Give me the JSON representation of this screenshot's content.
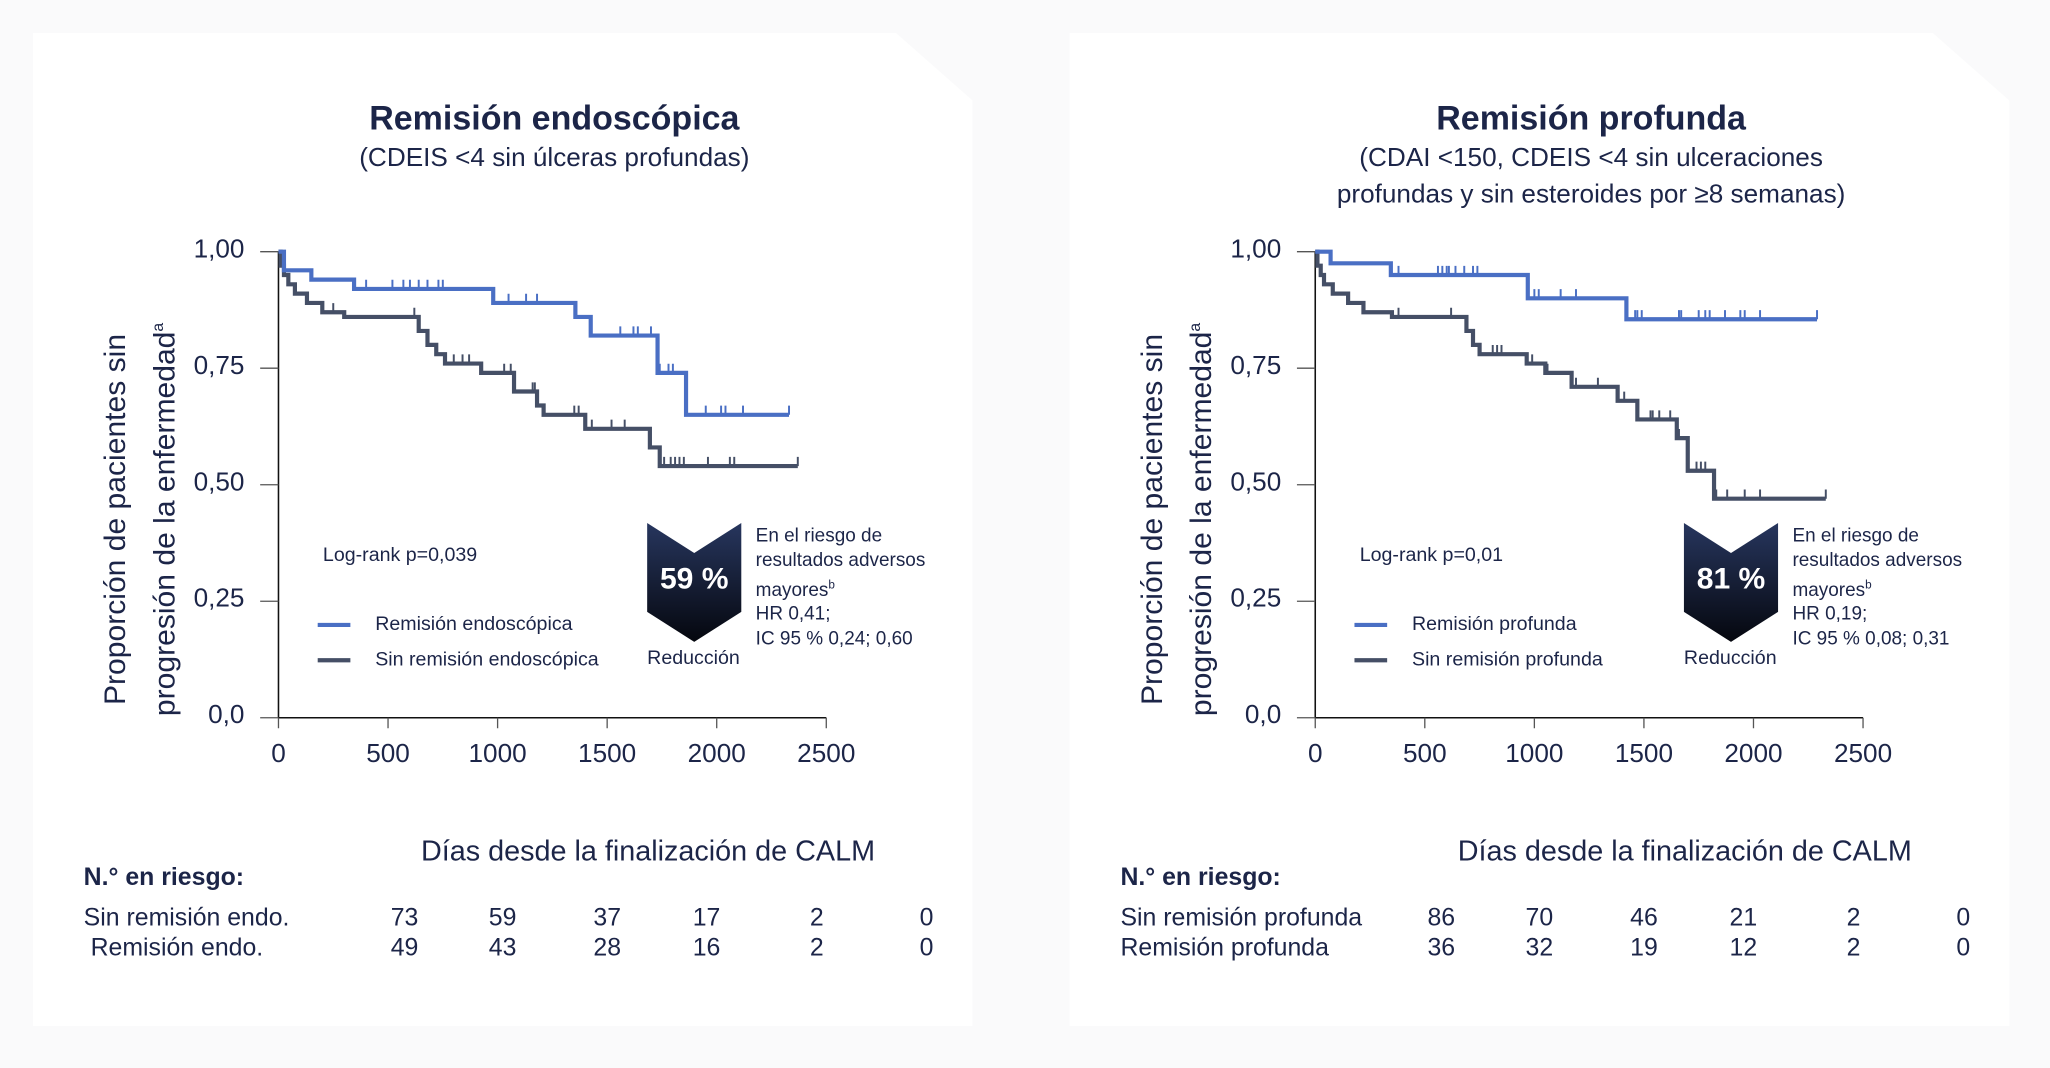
{
  "colors": {
    "series_1": "#4a6fc4",
    "series_2": "#454f66",
    "text": "#1c2548"
  },
  "shared": {
    "y_axis_label_line1": "Proporción de pacientes sin",
    "y_axis_label_line2": "progresión de la enfermedad",
    "y_axis_label_sup": "a",
    "x_axis_label": "Días desde la finalización de CALM",
    "risk_header": "N.° en riesgo:",
    "reduction_label": "Reducción",
    "risk_text": [
      "En el riesgo de",
      "resultados adversos",
      "mayores"
    ],
    "risk_sup": "b"
  },
  "chart_data": [
    {
      "type": "line",
      "title": "Remisión endoscópica",
      "subtitle": [
        "(CDEIS <4 sin úlceras profundas)"
      ],
      "xlabel": "Días desde la finalización de CALM",
      "ylabel": "Proporción de pacientes sin progresión de la enfermedad",
      "xlim": [
        0,
        2500
      ],
      "ylim": [
        0,
        1
      ],
      "x_ticks": [
        "0",
        "500",
        "1000",
        "1500",
        "2000",
        "2500"
      ],
      "y_ticks": [
        "1,00",
        "0,75",
        "0,50",
        "0,25",
        "0,0"
      ],
      "y_tick_values": [
        1,
        0.75,
        0.5,
        0.25,
        0
      ],
      "log_rank": "Log-rank p=0,039",
      "reduction": "59 %",
      "hr": "HR 0,41;",
      "ci": "IC 95 % 0,24; 0,60",
      "legend": "bottom-left",
      "series": [
        {
          "name": "Remisión endoscópica",
          "color": "#4a6fc4",
          "steps": [
            [
              0,
              1
            ],
            [
              25,
              0.96
            ],
            [
              150,
              0.94
            ],
            [
              345,
              0.92
            ],
            [
              980,
              0.89
            ],
            [
              1355,
              0.86
            ],
            [
              1425,
              0.82
            ],
            [
              1730,
              0.74
            ],
            [
              1860,
              0.65
            ]
          ],
          "end": 2330,
          "censored": [
            400,
            520,
            570,
            600,
            640,
            680,
            730,
            750,
            1050,
            1130,
            1180,
            1560,
            1620,
            1640,
            1700,
            1740,
            1780,
            1800,
            1950,
            2020,
            2040,
            2120,
            2330
          ]
        },
        {
          "name": "Sin remisión endoscópica",
          "color": "#454f66",
          "steps": [
            [
              0,
              1
            ],
            [
              10,
              0.97
            ],
            [
              25,
              0.95
            ],
            [
              45,
              0.93
            ],
            [
              75,
              0.91
            ],
            [
              130,
              0.89
            ],
            [
              200,
              0.87
            ],
            [
              300,
              0.86
            ],
            [
              640,
              0.83
            ],
            [
              680,
              0.8
            ],
            [
              720,
              0.78
            ],
            [
              760,
              0.76
            ],
            [
              925,
              0.74
            ],
            [
              1075,
              0.7
            ],
            [
              1180,
              0.67
            ],
            [
              1210,
              0.65
            ],
            [
              1400,
              0.62
            ],
            [
              1695,
              0.58
            ],
            [
              1740,
              0.54
            ]
          ],
          "end": 2370,
          "censored": [
            250,
            620,
            800,
            840,
            870,
            1030,
            1060,
            1160,
            1170,
            1350,
            1370,
            1400,
            1430,
            1520,
            1580,
            1760,
            1790,
            1810,
            1830,
            1850,
            1960,
            2060,
            2080,
            2370
          ]
        }
      ],
      "at_risk": {
        "rows": [
          {
            "label": "Sin remisión endo.",
            "values": [
              73,
              59,
              37,
              17,
              2,
              0
            ]
          },
          {
            "label": " Remisión endo.",
            "values": [
              49,
              43,
              28,
              16,
              2,
              0
            ]
          }
        ]
      }
    },
    {
      "type": "line",
      "title": "Remisión profunda",
      "subtitle": [
        "(CDAI <150, CDEIS <4 sin ulceraciones",
        "profundas  y sin esteroides por ≥8 semanas)"
      ],
      "xlabel": "Días desde la finalización de CALM",
      "ylabel": "Proporción de pacientes sin progresión de la enfermedad",
      "xlim": [
        0,
        2500
      ],
      "ylim": [
        0,
        1
      ],
      "x_ticks": [
        "0",
        "500",
        "1000",
        "1500",
        "2000",
        "2500"
      ],
      "y_ticks": [
        "1,00",
        "0,75",
        "0,50",
        "0,25",
        "0,0"
      ],
      "y_tick_values": [
        1,
        0.75,
        0.5,
        0.25,
        0
      ],
      "log_rank": "Log-rank p=0,01",
      "reduction": "81 %",
      "hr": "HR 0,19;",
      "ci": "IC 95 % 0,08; 0,31",
      "legend": "bottom-left",
      "series": [
        {
          "name": "Remisión profunda",
          "color": "#4a6fc4",
          "steps": [
            [
              0,
              1
            ],
            [
              70,
              0.975
            ],
            [
              345,
              0.95
            ],
            [
              970,
              0.9
            ],
            [
              1420,
              0.855
            ]
          ],
          "end": 2290,
          "censored": [
            380,
            560,
            580,
            600,
            610,
            640,
            680,
            720,
            740,
            1000,
            1020,
            1120,
            1190,
            1460,
            1470,
            1490,
            1660,
            1670,
            1750,
            1780,
            1800,
            1870,
            1940,
            1960,
            2030,
            2290
          ]
        },
        {
          "name": "Sin remisión profunda",
          "color": "#454f66",
          "steps": [
            [
              0,
              1
            ],
            [
              10,
              0.97
            ],
            [
              25,
              0.95
            ],
            [
              40,
              0.93
            ],
            [
              80,
              0.91
            ],
            [
              150,
              0.89
            ],
            [
              220,
              0.87
            ],
            [
              350,
              0.86
            ],
            [
              690,
              0.83
            ],
            [
              720,
              0.8
            ],
            [
              750,
              0.78
            ],
            [
              965,
              0.76
            ],
            [
              1050,
              0.74
            ],
            [
              1170,
              0.71
            ],
            [
              1380,
              0.68
            ],
            [
              1470,
              0.64
            ],
            [
              1650,
              0.6
            ],
            [
              1700,
              0.53
            ],
            [
              1820,
              0.47
            ]
          ],
          "end": 2330,
          "censored": [
            380,
            620,
            720,
            810,
            830,
            850,
            990,
            1060,
            1190,
            1290,
            1410,
            1530,
            1540,
            1570,
            1620,
            1660,
            1740,
            1760,
            1780,
            1830,
            1880,
            1960,
            2030,
            2330
          ]
        }
      ],
      "at_risk": {
        "rows": [
          {
            "label": "Sin remisión profunda",
            "values": [
              86,
              70,
              46,
              21,
              2,
              0
            ]
          },
          {
            "label": "Remisión profunda",
            "values": [
              36,
              32,
              19,
              12,
              2,
              0
            ]
          }
        ]
      }
    }
  ]
}
